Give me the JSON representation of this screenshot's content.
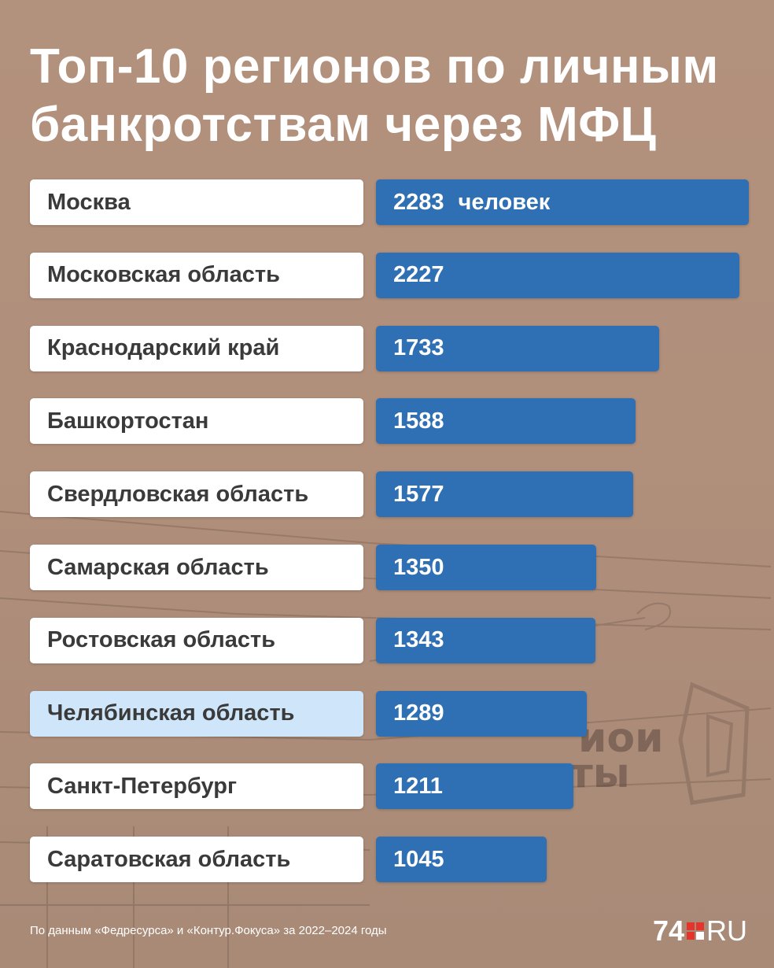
{
  "title_lines": [
    "Топ-10 регионов по личным",
    "банкротствам через МФЦ"
  ],
  "chart_data": {
    "type": "bar",
    "orientation": "horizontal",
    "title": "Топ-10 регионов по личным банкротствам через МФЦ",
    "unit": "человек",
    "categories": [
      "Москва",
      "Московская область",
      "Краснодарский край",
      "Башкортостан",
      "Свердловская область",
      "Самарская область",
      "Ростовская область",
      "Челябинская область",
      "Санкт-Петербург",
      "Саратовская область"
    ],
    "values": [
      2283,
      2227,
      1733,
      1588,
      1577,
      1350,
      1343,
      1289,
      1211,
      1045
    ],
    "highlighted": "Челябинская область",
    "bar_color": "#2f6fb3",
    "highlight_color": "#cfe6fa"
  },
  "footer": "По данным «Федресурса» и «Контур.Фокуса» за 2022–2024 годы",
  "logo": {
    "left": "74",
    "right": "RU"
  },
  "background_watermark_text": [
    "иои",
    "окументы"
  ]
}
